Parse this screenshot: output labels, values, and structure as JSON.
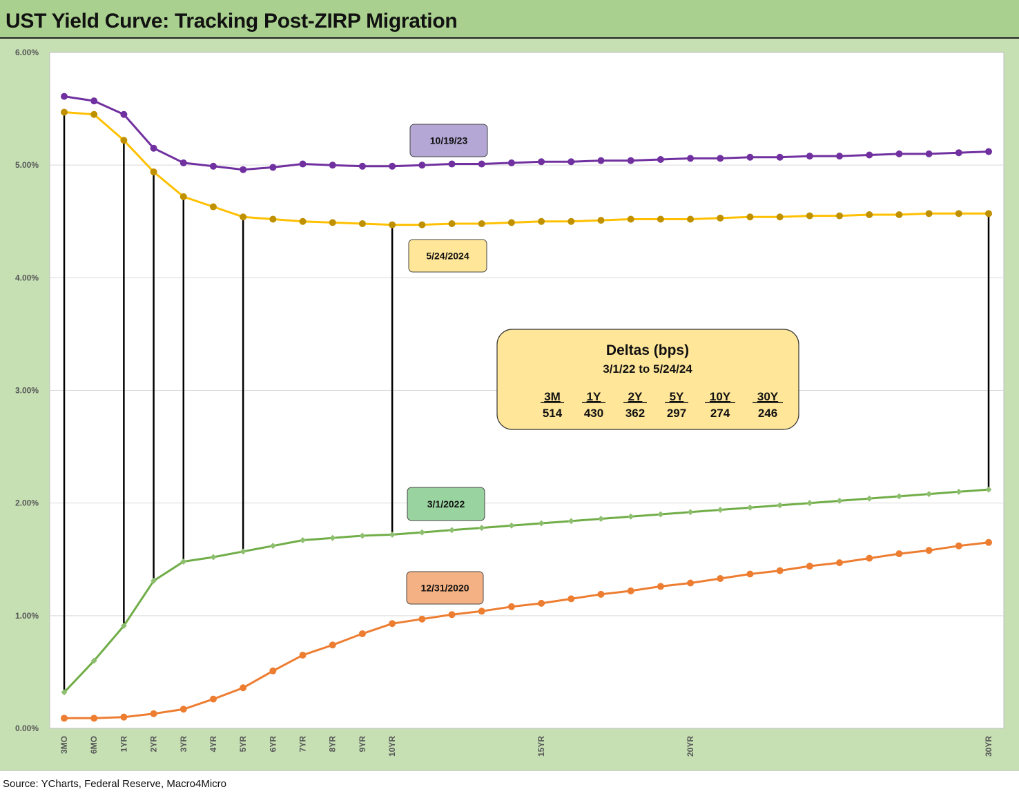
{
  "header": {
    "title": "UST Yield Curve: Tracking Post-ZIRP Migration"
  },
  "footer": {
    "source": "Source: YCharts, Federal Reserve, Macro4Micro"
  },
  "chart_data": {
    "type": "line",
    "y_ticks": [
      "0.00%",
      "1.00%",
      "2.00%",
      "3.00%",
      "4.00%",
      "5.00%",
      "6.00%"
    ],
    "ylim": [
      0,
      6
    ],
    "x_labels": [
      {
        "i": 0,
        "label": "3MO"
      },
      {
        "i": 1,
        "label": "6MO"
      },
      {
        "i": 2,
        "label": "1YR"
      },
      {
        "i": 3,
        "label": "2YR"
      },
      {
        "i": 4,
        "label": "3YR"
      },
      {
        "i": 5,
        "label": "4YR"
      },
      {
        "i": 6,
        "label": "5YR"
      },
      {
        "i": 7,
        "label": "6YR"
      },
      {
        "i": 8,
        "label": "7YR"
      },
      {
        "i": 9,
        "label": "8YR"
      },
      {
        "i": 10,
        "label": "9YR"
      },
      {
        "i": 11,
        "label": "10YR"
      },
      {
        "i": 16,
        "label": "15YR"
      },
      {
        "i": 21,
        "label": "20YR"
      },
      {
        "i": 31,
        "label": "30YR"
      }
    ],
    "point_count": 32,
    "series": [
      {
        "name": "10/19/23",
        "color": "#7030a0",
        "label_fill": "#b4a7d6",
        "values": [
          5.61,
          5.57,
          5.45,
          5.15,
          5.02,
          4.99,
          4.96,
          4.98,
          5.01,
          5.0,
          4.99,
          4.99,
          5.0,
          5.01,
          5.01,
          5.02,
          5.03,
          5.03,
          5.04,
          5.04,
          5.05,
          5.06,
          5.06,
          5.07,
          5.07,
          5.08,
          5.08,
          5.09,
          5.1,
          5.1,
          5.11,
          5.12
        ]
      },
      {
        "name": "5/24/2024",
        "color": "#ffc000",
        "marker_color": "#bf9000",
        "label_fill": "#ffe699",
        "values": [
          5.47,
          5.45,
          5.22,
          4.94,
          4.72,
          4.63,
          4.54,
          4.52,
          4.5,
          4.49,
          4.48,
          4.47,
          4.47,
          4.48,
          4.48,
          4.49,
          4.5,
          4.5,
          4.51,
          4.52,
          4.52,
          4.52,
          4.53,
          4.54,
          4.54,
          4.55,
          4.55,
          4.56,
          4.56,
          4.57,
          4.57,
          4.57
        ]
      },
      {
        "name": "3/1/2022",
        "color": "#70ad47",
        "marker_color": "#8fbf70",
        "label_fill": "#99d3a0",
        "values": [
          0.32,
          0.6,
          0.91,
          1.31,
          1.48,
          1.52,
          1.57,
          1.62,
          1.67,
          1.69,
          1.71,
          1.72,
          1.74,
          1.76,
          1.78,
          1.8,
          1.82,
          1.84,
          1.86,
          1.88,
          1.9,
          1.92,
          1.94,
          1.96,
          1.98,
          2.0,
          2.02,
          2.04,
          2.06,
          2.08,
          2.1,
          2.12
        ]
      },
      {
        "name": "12/31/2020",
        "color": "#ed7d31",
        "label_fill": "#f4b183",
        "values": [
          0.09,
          0.09,
          0.1,
          0.13,
          0.17,
          0.26,
          0.36,
          0.51,
          0.65,
          0.74,
          0.84,
          0.93,
          0.97,
          1.01,
          1.04,
          1.08,
          1.11,
          1.15,
          1.19,
          1.22,
          1.26,
          1.29,
          1.33,
          1.37,
          1.4,
          1.44,
          1.47,
          1.51,
          1.55,
          1.58,
          1.62,
          1.65
        ]
      }
    ],
    "drop_lines": [
      0,
      2,
      3,
      4,
      6,
      11,
      31
    ],
    "deltas_box": {
      "title": "Deltas (bps)",
      "subtitle": "3/1/22 to 5/24/24",
      "headers": [
        "3M",
        "1Y",
        "2Y",
        "5Y",
        "10Y",
        "30Y"
      ],
      "values": [
        "514",
        "430",
        "362",
        "297",
        "274",
        "246"
      ]
    }
  }
}
